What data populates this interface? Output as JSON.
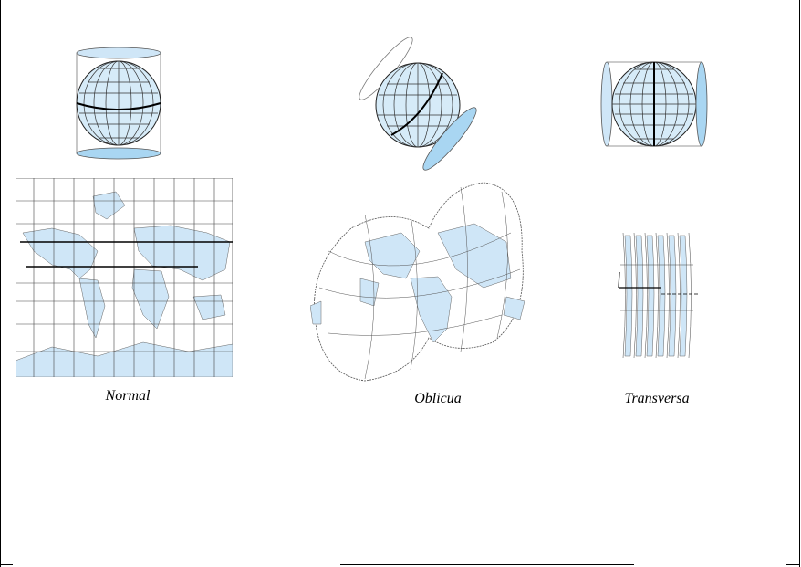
{
  "figure": {
    "captions": {
      "normal": "Normal",
      "oblique": "Oblicua",
      "transverse": "Transversa"
    }
  },
  "colors": {
    "ocean_fill": "#ffffff",
    "land_fill": "#cfe6f7",
    "cylinder_fill": "#bfe0f5",
    "globe_fill": "#d6ebf8",
    "grid": "#222222",
    "outline": "#333333"
  },
  "icons": {
    "normal_globe": "globe-in-vertical-cylinder",
    "oblique_globe": "globe-in-tilted-cylinder",
    "transverse_globe": "globe-in-horizontal-cylinder"
  }
}
